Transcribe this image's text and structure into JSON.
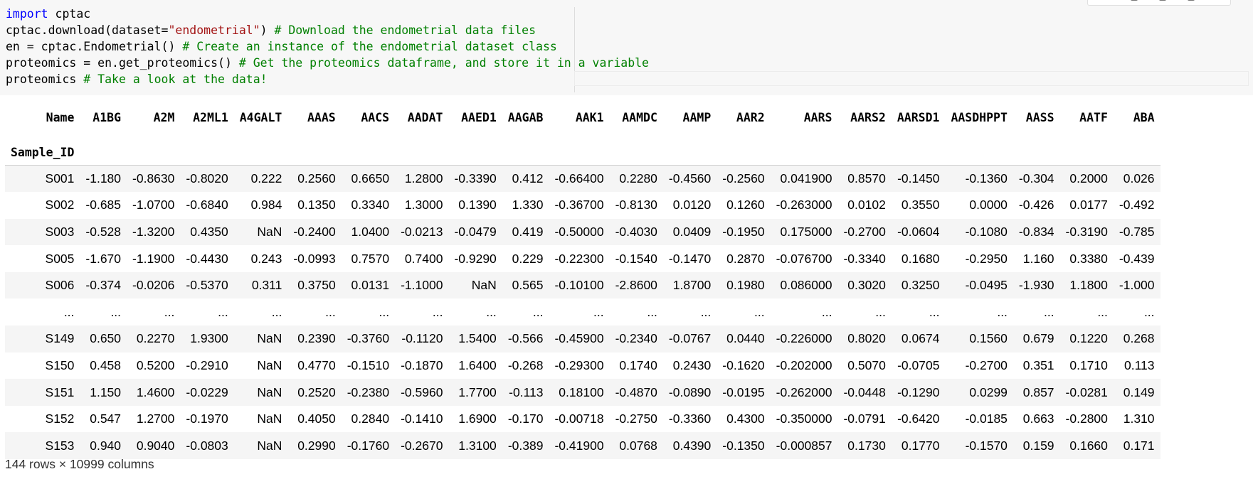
{
  "code": {
    "line1_keyword": "import",
    "line1_rest": " cptac",
    "line2_pre": "cptac.download(dataset=",
    "line2_string": "\"endometrial\"",
    "line2_post": ") ",
    "line2_comment": "# Download the endometrial data files",
    "line3_code": "en = cptac.Endometrial() ",
    "line3_comment": "# Create an instance of the endometrial dataset class",
    "line4_code": "proteomics = en.get_proteomics() ",
    "line4_comment": "# Get the proteomics dataframe, and store it in a variable",
    "line5_code": "proteomics ",
    "line5_comment": "# Take a look at the data!"
  },
  "table": {
    "columns_label": "Name",
    "index_label": "Sample_ID",
    "columns": [
      "A1BG",
      "A2M",
      "A2ML1",
      "A4GALT",
      "AAAS",
      "AACS",
      "AADAT",
      "AAED1",
      "AAGAB",
      "AAK1",
      "AAMDC",
      "AAMP",
      "AAR2",
      "AARS",
      "AARS2",
      "AARSD1",
      "AASDHPPT",
      "AASS",
      "AATF",
      "ABA"
    ],
    "rows": [
      {
        "id": "S001",
        "values": [
          "-1.180",
          "-0.8630",
          "-0.8020",
          "0.222",
          "0.2560",
          "0.6650",
          "1.2800",
          "-0.3390",
          "0.412",
          "-0.66400",
          "0.2280",
          "-0.4560",
          "-0.2560",
          "0.041900",
          "0.8570",
          "-0.1450",
          "-0.1360",
          "-0.304",
          "0.2000",
          "0.026"
        ]
      },
      {
        "id": "S002",
        "values": [
          "-0.685",
          "-1.0700",
          "-0.6840",
          "0.984",
          "0.1350",
          "0.3340",
          "1.3000",
          "0.1390",
          "1.330",
          "-0.36700",
          "-0.8130",
          "0.0120",
          "0.1260",
          "-0.263000",
          "0.0102",
          "0.3550",
          "0.0000",
          "-0.426",
          "0.0177",
          "-0.492"
        ]
      },
      {
        "id": "S003",
        "values": [
          "-0.528",
          "-1.3200",
          "0.4350",
          "NaN",
          "-0.2400",
          "1.0400",
          "-0.0213",
          "-0.0479",
          "0.419",
          "-0.50000",
          "-0.4030",
          "0.0409",
          "-0.1950",
          "0.175000",
          "-0.2700",
          "-0.0604",
          "-0.1080",
          "-0.834",
          "-0.3190",
          "-0.785"
        ]
      },
      {
        "id": "S005",
        "values": [
          "-1.670",
          "-1.1900",
          "-0.4430",
          "0.243",
          "-0.0993",
          "0.7570",
          "0.7400",
          "-0.9290",
          "0.229",
          "-0.22300",
          "-0.1540",
          "-0.1470",
          "0.2870",
          "-0.076700",
          "-0.3340",
          "0.1680",
          "-0.2950",
          "1.160",
          "0.3380",
          "-0.439"
        ]
      },
      {
        "id": "S006",
        "values": [
          "-0.374",
          "-0.0206",
          "-0.5370",
          "0.311",
          "0.3750",
          "0.0131",
          "-1.1000",
          "NaN",
          "0.565",
          "-0.10100",
          "-2.8600",
          "1.8700",
          "0.1980",
          "0.086000",
          "0.3020",
          "0.3250",
          "-0.0495",
          "-1.930",
          "1.1800",
          "-1.000"
        ]
      },
      {
        "id": "...",
        "values": [
          "...",
          "...",
          "...",
          "...",
          "...",
          "...",
          "...",
          "...",
          "...",
          "...",
          "...",
          "...",
          "...",
          "...",
          "...",
          "...",
          "...",
          "...",
          "...",
          "..."
        ]
      },
      {
        "id": "S149",
        "values": [
          "0.650",
          "0.2270",
          "1.9300",
          "NaN",
          "0.2390",
          "-0.3760",
          "-0.1120",
          "1.5400",
          "-0.566",
          "-0.45900",
          "-0.2340",
          "-0.0767",
          "0.0440",
          "-0.226000",
          "0.8020",
          "0.0674",
          "0.1560",
          "0.679",
          "0.1220",
          "0.268"
        ]
      },
      {
        "id": "S150",
        "values": [
          "0.458",
          "0.5200",
          "-0.2910",
          "NaN",
          "0.4770",
          "-0.1510",
          "-0.1870",
          "1.6400",
          "-0.268",
          "-0.29300",
          "0.1740",
          "0.2430",
          "-0.1620",
          "-0.202000",
          "0.5070",
          "-0.0705",
          "-0.2700",
          "0.351",
          "0.1710",
          "0.113"
        ]
      },
      {
        "id": "S151",
        "values": [
          "1.150",
          "1.4600",
          "-0.0229",
          "NaN",
          "0.2520",
          "-0.2380",
          "-0.5960",
          "1.7700",
          "-0.113",
          "0.18100",
          "-0.4870",
          "-0.0890",
          "-0.0195",
          "-0.262000",
          "-0.0448",
          "-0.1290",
          "0.0299",
          "0.857",
          "-0.0281",
          "0.149"
        ]
      },
      {
        "id": "S152",
        "values": [
          "0.547",
          "1.2700",
          "-0.1970",
          "NaN",
          "0.4050",
          "0.2840",
          "-0.1410",
          "1.6900",
          "-0.170",
          "-0.00718",
          "-0.2750",
          "-0.3360",
          "0.4300",
          "-0.350000",
          "-0.0791",
          "-0.6420",
          "-0.0185",
          "0.663",
          "-0.2800",
          "1.310"
        ]
      },
      {
        "id": "S153",
        "values": [
          "0.940",
          "0.9040",
          "-0.0803",
          "NaN",
          "0.2990",
          "-0.1760",
          "-0.2670",
          "1.3100",
          "-0.389",
          "-0.41900",
          "0.0768",
          "0.4390",
          "-0.1350",
          "-0.000857",
          "0.1730",
          "0.1770",
          "-0.1570",
          "0.159",
          "0.1660",
          "0.171"
        ]
      }
    ]
  },
  "shape_text": "144 rows × 10999 columns"
}
